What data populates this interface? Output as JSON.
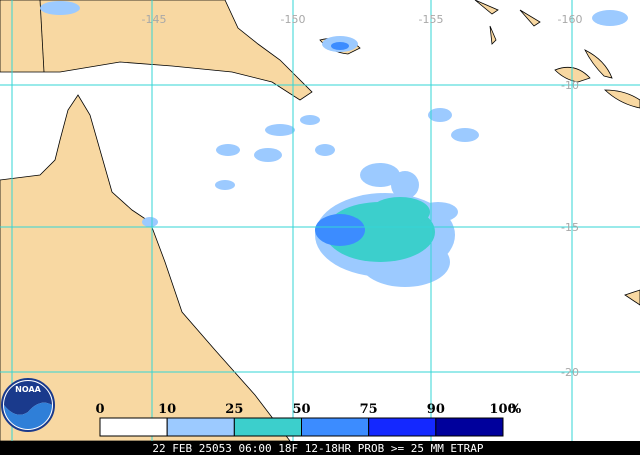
{
  "map": {
    "longitude_labels": [
      "-145",
      "-150",
      "-155",
      "-160"
    ],
    "latitude_labels": [
      "-10",
      "-15",
      "-20"
    ],
    "logo": "NOAA",
    "legend": {
      "ticks": [
        0,
        10,
        25,
        50,
        75,
        90,
        100
      ],
      "unit": "%",
      "colors": [
        "#ffffff",
        "#9ccaff",
        "#3ccfcc",
        "#3c8cff",
        "#1428ff",
        "#00009c"
      ]
    },
    "footer": "22 FEB 25053 06:00 18F 12-18HR PROB >= 25 MM ETRAP"
  }
}
